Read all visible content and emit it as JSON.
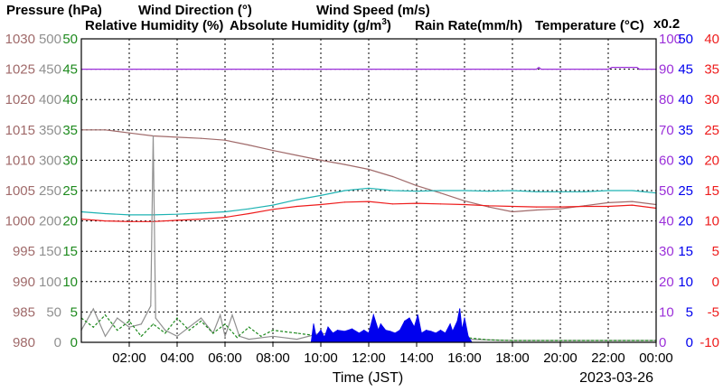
{
  "colors": {
    "pressure": "#a06a6a",
    "wind_direction": "#909090",
    "wind_speed": "#1e8a1e",
    "humidity": "#9b30d9",
    "abs_humidity": "#1fb3b3",
    "rain": "#0000ee",
    "temperature": "#ee1c1c"
  },
  "legend": {
    "pressure": "Pressure (hPa)",
    "wind_direction": "Wind Direction (°)",
    "wind_speed": "Wind Speed (m/s)",
    "humidity": "Relative Humidity (%)",
    "abs_humidity_pre": "Absolute Humidity (g/m",
    "abs_humidity_sup": "3",
    "abs_humidity_post": ")",
    "rain": "Rain Rate(mm/h)",
    "temperature": "Temperature (°C)",
    "rain_scale": "x0.2"
  },
  "chart_data": {
    "type": "line",
    "xlabel": "Time (JST)",
    "date": "2023-03-26",
    "x_ticks": [
      "02:00",
      "04:00",
      "06:00",
      "08:00",
      "10:00",
      "12:00",
      "14:00",
      "16:00",
      "18:00",
      "20:00",
      "22:00",
      "00:00"
    ],
    "x_range_hours": [
      0,
      24
    ],
    "axes": {
      "pressure": [
        "980",
        "985",
        "990",
        "995",
        "1000",
        "1005",
        "1010",
        "1015",
        "1020",
        "1025",
        "1030"
      ],
      "wind_direction": [
        "0",
        "50",
        "100",
        "150",
        "200",
        "250",
        "300",
        "350",
        "400",
        "450",
        "500"
      ],
      "wind_speed": [
        "0",
        "5",
        "10",
        "15",
        "20",
        "25",
        "30",
        "35",
        "40",
        "45",
        "50"
      ],
      "humidity": [
        "0",
        "10",
        "20",
        "30",
        "40",
        "50",
        "60",
        "70",
        "80",
        "90",
        "100"
      ],
      "rain": [
        "0",
        "5",
        "10",
        "15",
        "20",
        "25",
        "30",
        "35",
        "40",
        "45",
        "50"
      ],
      "temperature": [
        "-10",
        "-5",
        "0",
        "5",
        "10",
        "15",
        "20",
        "25",
        "30",
        "35",
        "40"
      ]
    },
    "series": [
      {
        "key": "pressure",
        "name": "Pressure (hPa)",
        "min": 980,
        "max": 1030,
        "style": "line",
        "points": [
          [
            0,
            1015
          ],
          [
            1,
            1015
          ],
          [
            2,
            1014.5
          ],
          [
            3,
            1014
          ],
          [
            4,
            1013.8
          ],
          [
            5,
            1013.6
          ],
          [
            6,
            1013.3
          ],
          [
            7,
            1012.5
          ],
          [
            8,
            1011.6
          ],
          [
            9,
            1010.8
          ],
          [
            10,
            1010
          ],
          [
            11,
            1009.3
          ],
          [
            12,
            1008.5
          ],
          [
            13,
            1007.3
          ],
          [
            14,
            1005.8
          ],
          [
            15,
            1004.6
          ],
          [
            16,
            1003.3
          ],
          [
            17,
            1002.3
          ],
          [
            18,
            1001.5
          ],
          [
            19,
            1001.8
          ],
          [
            20,
            1002
          ],
          [
            21,
            1002.5
          ],
          [
            22,
            1003
          ],
          [
            23,
            1003.2
          ],
          [
            24,
            1002.7
          ]
        ]
      },
      {
        "key": "humidity",
        "name": "Relative Humidity (%)",
        "min": 0,
        "max": 100,
        "style": "line",
        "points": [
          [
            0,
            90
          ],
          [
            19,
            90
          ],
          [
            19.1,
            90.6
          ],
          [
            19.2,
            90
          ],
          [
            22,
            90
          ],
          [
            22.15,
            90.6
          ],
          [
            23.2,
            90.6
          ],
          [
            23.3,
            90
          ],
          [
            24,
            90
          ]
        ]
      },
      {
        "key": "abs_humidity",
        "name": "Absolute Humidity (g/m3)",
        "min": 0,
        "max": 50,
        "style": "line",
        "points": [
          [
            0,
            21.5
          ],
          [
            1,
            21.2
          ],
          [
            2,
            21
          ],
          [
            3,
            21
          ],
          [
            4,
            21.1
          ],
          [
            5,
            21.3
          ],
          [
            6,
            21.5
          ],
          [
            7,
            22
          ],
          [
            8,
            22.6
          ],
          [
            9,
            23.5
          ],
          [
            10,
            24.2
          ],
          [
            11,
            25
          ],
          [
            12,
            25.4
          ],
          [
            13,
            25
          ],
          [
            14,
            24.9
          ],
          [
            15,
            25
          ],
          [
            16,
            25
          ],
          [
            17,
            24.9
          ],
          [
            18,
            25
          ],
          [
            19,
            24.8
          ],
          [
            20,
            24.8
          ],
          [
            21,
            24.8
          ],
          [
            22,
            25
          ],
          [
            23,
            25
          ],
          [
            24,
            24.6
          ]
        ]
      },
      {
        "key": "temperature",
        "name": "Temperature (°C)",
        "min": -10,
        "max": 40,
        "style": "line",
        "points": [
          [
            0,
            10.3
          ],
          [
            1,
            10
          ],
          [
            2,
            9.9
          ],
          [
            3,
            9.9
          ],
          [
            4,
            10.1
          ],
          [
            5,
            10.3
          ],
          [
            6,
            10.6
          ],
          [
            7,
            11.2
          ],
          [
            8,
            11.9
          ],
          [
            9,
            12.4
          ],
          [
            10,
            12.7
          ],
          [
            11,
            13.1
          ],
          [
            12,
            13.2
          ],
          [
            13,
            12.8
          ],
          [
            14,
            12.9
          ],
          [
            15,
            12.8
          ],
          [
            16,
            12.7
          ],
          [
            17,
            12.5
          ],
          [
            18,
            12.4
          ],
          [
            19,
            12.3
          ],
          [
            20,
            12.3
          ],
          [
            21,
            12.4
          ],
          [
            22,
            12.4
          ],
          [
            23,
            12.6
          ],
          [
            24,
            12.1
          ]
        ]
      },
      {
        "key": "wind_direction",
        "name": "Wind Direction (°)",
        "min": 0,
        "max": 500,
        "style": "line",
        "points": [
          [
            0,
            20
          ],
          [
            0.5,
            55
          ],
          [
            1,
            10
          ],
          [
            1.5,
            40
          ],
          [
            2,
            25
          ],
          [
            2.5,
            30
          ],
          [
            2.9,
            60
          ],
          [
            3,
            340
          ],
          [
            3.1,
            40
          ],
          [
            3.5,
            20
          ],
          [
            4,
            10
          ],
          [
            4.5,
            25
          ],
          [
            5,
            40
          ],
          [
            5.5,
            15
          ],
          [
            5.8,
            45
          ],
          [
            6,
            10
          ],
          [
            6.3,
            45
          ],
          [
            6.6,
            10
          ],
          [
            7,
            5
          ],
          [
            8,
            10
          ],
          [
            9,
            5
          ],
          [
            10,
            15
          ],
          [
            11,
            10
          ],
          [
            12,
            5
          ],
          [
            13,
            5
          ],
          [
            14,
            5
          ],
          [
            15,
            10
          ],
          [
            16,
            5
          ],
          [
            18,
            3
          ],
          [
            24,
            3
          ]
        ]
      },
      {
        "key": "wind_speed",
        "name": "Wind Speed (m/s)",
        "min": 0,
        "max": 50,
        "style": "dashed",
        "points": [
          [
            0,
            4
          ],
          [
            0.5,
            2.5
          ],
          [
            1,
            4.5
          ],
          [
            1.5,
            2
          ],
          [
            2,
            3.5
          ],
          [
            2.5,
            1
          ],
          [
            3,
            3
          ],
          [
            3.5,
            1.5
          ],
          [
            4,
            4
          ],
          [
            4.5,
            2
          ],
          [
            5,
            3.5
          ],
          [
            5.5,
            1.5
          ],
          [
            6,
            3
          ],
          [
            6.5,
            0.8
          ],
          [
            7,
            2.5
          ],
          [
            7.5,
            1
          ],
          [
            8,
            2
          ],
          [
            9,
            1.5
          ],
          [
            10,
            1
          ],
          [
            11,
            0.7
          ],
          [
            12,
            0.5
          ],
          [
            13,
            0.5
          ],
          [
            14,
            0.4
          ],
          [
            15,
            1
          ],
          [
            16,
            0.8
          ],
          [
            17,
            0.4
          ],
          [
            18,
            0.3
          ],
          [
            24,
            0.3
          ]
        ]
      },
      {
        "key": "rain",
        "name": "Rain Rate(mm/h)",
        "min": 0,
        "max": 50,
        "style": "area",
        "points": [
          [
            9.6,
            0
          ],
          [
            9.7,
            3
          ],
          [
            9.8,
            1
          ],
          [
            10,
            2
          ],
          [
            10.15,
            0.8
          ],
          [
            10.3,
            2.5
          ],
          [
            10.5,
            1.5
          ],
          [
            10.7,
            2
          ],
          [
            11,
            1.8
          ],
          [
            11.3,
            2.2
          ],
          [
            11.6,
            1.5
          ],
          [
            11.8,
            2
          ],
          [
            12,
            1.5
          ],
          [
            12.2,
            4.5
          ],
          [
            12.4,
            2
          ],
          [
            12.5,
            3
          ],
          [
            12.7,
            2
          ],
          [
            12.9,
            1.8
          ],
          [
            13.1,
            1.5
          ],
          [
            13.3,
            2
          ],
          [
            13.5,
            3.5
          ],
          [
            13.7,
            4
          ],
          [
            13.9,
            2.5
          ],
          [
            14.05,
            4.5
          ],
          [
            14.2,
            1.5
          ],
          [
            14.4,
            2
          ],
          [
            14.6,
            1.8
          ],
          [
            14.8,
            1.5
          ],
          [
            15.0,
            2
          ],
          [
            15.2,
            1.5
          ],
          [
            15.4,
            3
          ],
          [
            15.5,
            1.8
          ],
          [
            15.7,
            3.5
          ],
          [
            15.8,
            5.5
          ],
          [
            15.9,
            2
          ],
          [
            16.0,
            4
          ],
          [
            16.15,
            1
          ],
          [
            16.3,
            0
          ]
        ]
      }
    ]
  }
}
